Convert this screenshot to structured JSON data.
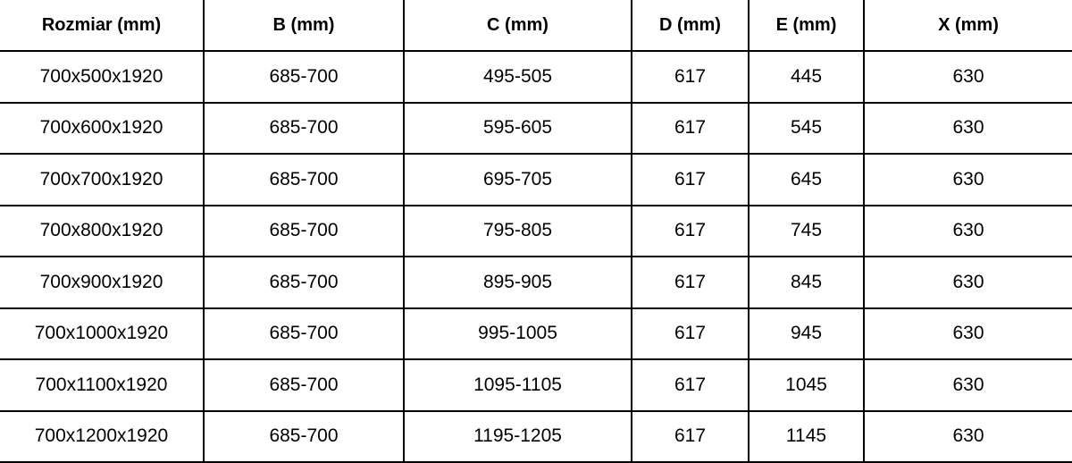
{
  "table": {
    "headers": [
      "Rozmiar (mm)",
      "B (mm)",
      "C (mm)",
      "D (mm)",
      "E (mm)",
      "X (mm)"
    ],
    "header_keys": [
      "rozmiar",
      "b",
      "c",
      "d",
      "e",
      "x"
    ],
    "rows": [
      [
        "700x500x1920",
        "685-700",
        "495-505",
        "617",
        "445",
        "630"
      ],
      [
        "700x600x1920",
        "685-700",
        "595-605",
        "617",
        "545",
        "630"
      ],
      [
        "700x700x1920",
        "685-700",
        "695-705",
        "617",
        "645",
        "630"
      ],
      [
        "700x800x1920",
        "685-700",
        "795-805",
        "617",
        "745",
        "630"
      ],
      [
        "700x900x1920",
        "685-700",
        "895-905",
        "617",
        "845",
        "630"
      ],
      [
        "700x1000x1920",
        "685-700",
        "995-1005",
        "617",
        "945",
        "630"
      ],
      [
        "700x1100x1920",
        "685-700",
        "1095-1105",
        "617",
        "1045",
        "630"
      ],
      [
        "700x1200x1920",
        "685-700",
        "1195-1205",
        "617",
        "1145",
        "630"
      ]
    ],
    "colors": {
      "border": "#000000",
      "text": "#000000",
      "background": "#ffffff"
    }
  }
}
